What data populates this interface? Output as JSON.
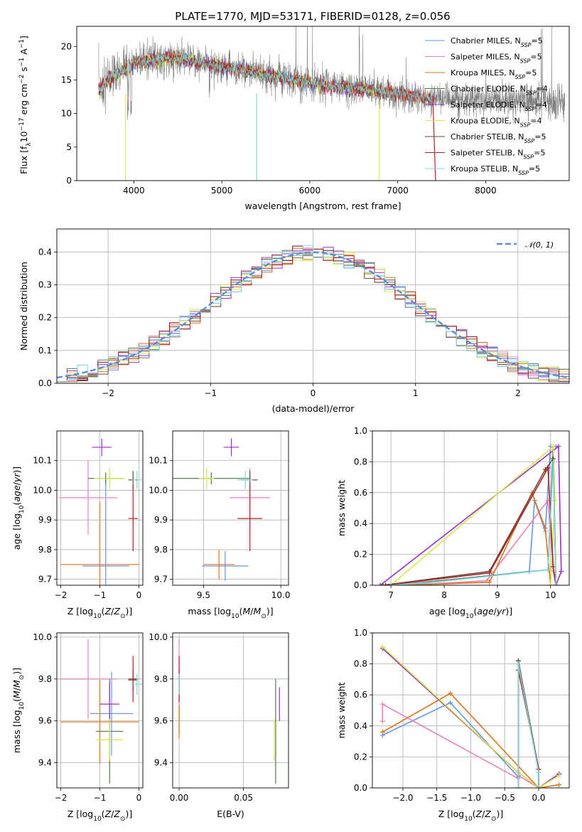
{
  "figure_title": "PLATE=1770, MJD=53171, FIBERID=0128, z=0.056",
  "series": [
    {
      "key": "chab_miles",
      "label": "Chabrier MILES, N",
      "sub": "SSP",
      "suf": "=5",
      "color": "#6495ed"
    },
    {
      "key": "salp_miles",
      "label": "Salpeter MILES, N",
      "sub": "SSP",
      "suf": "=5",
      "color": "#e882b8"
    },
    {
      "key": "krou_miles",
      "label": "Kroupa MILES, N",
      "sub": "SSP",
      "suf": "=5",
      "color": "#e0731a"
    },
    {
      "key": "chab_elod",
      "label": "Chabrier ELODIE, N",
      "sub": "SSP",
      "suf": "=4",
      "color": "#5a7a5a"
    },
    {
      "key": "salp_elod",
      "label": "Salpeter ELODIE, N",
      "sub": "SSP",
      "suf": "=4",
      "color": "#9b30c8"
    },
    {
      "key": "krou_elod",
      "label": "Kroupa ELODIE, N",
      "sub": "SSP",
      "suf": "=4",
      "color": "#d4e84a"
    },
    {
      "key": "chab_stel",
      "label": "Chabrier STELIB, N",
      "sub": "SSP",
      "suf": "=5",
      "color": "#6a4a3a"
    },
    {
      "key": "salp_stel",
      "label": "Salpeter STELIB, N",
      "sub": "SSP",
      "suf": "=5",
      "color": "#b22222"
    },
    {
      "key": "krou_stel",
      "label": "Kroupa STELIB, N",
      "sub": "SSP",
      "suf": "=5",
      "color": "#7fd8d8"
    }
  ],
  "chart_data": [
    {
      "id": "spectrum",
      "type": "line",
      "title": "PLATE=1770, MJD=53171, FIBERID=0128, z=0.056",
      "xlabel": "wavelength [Angstrom, rest frame]",
      "ylabel": "Flux [f_λ 10^-17 erg cm^-2 s^-1 A^-1]",
      "xlim": [
        3350,
        8950
      ],
      "ylim": [
        0,
        23
      ],
      "xticks": [
        4000,
        5000,
        6000,
        7000,
        8000
      ],
      "yticks": [
        0,
        5,
        10,
        15,
        20
      ],
      "data_color": "#808080",
      "continuum": {
        "x": [
          3600,
          3700,
          3800,
          3900,
          4000,
          4200,
          4400,
          4600,
          4800,
          5000,
          5200,
          5400,
          5600,
          5800,
          6000,
          6200,
          6400,
          6600,
          6800,
          7000,
          7200,
          7400
        ],
        "y": [
          13.5,
          15.0,
          15.8,
          16.5,
          17.5,
          18.0,
          18.3,
          18.0,
          17.5,
          17.0,
          16.5,
          16.0,
          15.5,
          15.0,
          14.6,
          14.2,
          13.9,
          13.6,
          13.3,
          13.0,
          12.6,
          12.2
        ]
      },
      "legend_position": "upper right"
    },
    {
      "id": "residuals",
      "type": "step",
      "xlabel": "(data-model)/error",
      "ylabel": "Normed distribution",
      "xlim": [
        -2.5,
        2.5
      ],
      "ylim": [
        0,
        0.47
      ],
      "xticks": [
        -2,
        -1,
        0,
        1,
        2
      ],
      "yticks": [
        0.0,
        0.1,
        0.2,
        0.3,
        0.4
      ],
      "bin_start": -2.5,
      "bin_width": 0.1,
      "gaussian": {
        "name": "N(0,1)",
        "mean": 0,
        "sigma": 1,
        "color": "#5b8fd6"
      },
      "legend_position": "upper right"
    },
    {
      "id": "age_vs_Z",
      "type": "errorbar",
      "xlabel": "Z [log10(Z/Z⊙)]",
      "ylabel": "age  [log10(age/yr)]",
      "xlim": [
        -2.1,
        0.1
      ],
      "ylim": [
        9.68,
        10.2
      ],
      "xticks": [
        -2,
        -1,
        0
      ],
      "yticks": [
        9.7,
        9.8,
        9.9,
        10.0,
        10.1
      ],
      "points": [
        {
          "s": "chab_miles",
          "x": -0.85,
          "xerr": 0.6,
          "y": 9.745,
          "yerr": 0.3
        },
        {
          "s": "salp_miles",
          "x": -1.3,
          "xerr": 0.75,
          "y": 9.975,
          "yerr": 0.125
        },
        {
          "s": "krou_miles",
          "x": -1.0,
          "xerr": 1.0,
          "y": 9.75,
          "yerr": 0.21
        },
        {
          "s": "chab_elod",
          "x": -0.85,
          "xerr": 0.45,
          "y": 10.04,
          "yerr": 0.02
        },
        {
          "s": "salp_elod",
          "x": -0.95,
          "xerr": 0.25,
          "y": 10.145,
          "yerr": 0.03
        },
        {
          "s": "krou_elod",
          "x": -0.75,
          "xerr": 0.4,
          "y": 10.04,
          "yerr": 0.035
        },
        {
          "s": "chab_stel",
          "x": -0.15,
          "xerr": 0.12,
          "y": 10.035,
          "yerr": 0.03
        },
        {
          "s": "salp_stel",
          "x": -0.15,
          "xerr": 0.12,
          "y": 9.905,
          "yerr": 0.11
        },
        {
          "s": "krou_stel",
          "x": -0.05,
          "xerr": 0.12,
          "y": 10.035,
          "yerr": 0.03
        }
      ]
    },
    {
      "id": "age_vs_mass",
      "type": "errorbar",
      "xlabel": "mass [log10(M/M⊙)]",
      "ylabel": "",
      "xlim": [
        9.3,
        10.05
      ],
      "ylim": [
        9.68,
        10.2
      ],
      "xticks": [
        9.5,
        10.0
      ],
      "yticks": [
        9.7,
        9.8,
        9.9,
        10.0,
        10.1
      ],
      "points": [
        {
          "s": "chab_miles",
          "x": 9.64,
          "xerr": 0.15,
          "y": 9.745,
          "yerr": 0.05
        },
        {
          "s": "salp_miles",
          "x": 9.8,
          "xerr": 0.13,
          "y": 9.975,
          "yerr": 0.1
        },
        {
          "s": "krou_miles",
          "x": 9.6,
          "xerr": 0.1,
          "y": 9.75,
          "yerr": 0.05
        },
        {
          "s": "chab_elod",
          "x": 9.55,
          "xerr": 0.25,
          "y": 10.04,
          "yerr": 0.02
        },
        {
          "s": "salp_elod",
          "x": 9.68,
          "xerr": 0.05,
          "y": 10.145,
          "yerr": 0.03
        },
        {
          "s": "krou_elod",
          "x": 9.52,
          "xerr": 0.05,
          "y": 10.04,
          "yerr": 0.035
        },
        {
          "s": "chab_stel",
          "x": 9.8,
          "xerr": 0.05,
          "y": 10.035,
          "yerr": 0.03
        },
        {
          "s": "salp_stel",
          "x": 9.8,
          "xerr": 0.08,
          "y": 9.905,
          "yerr": 0.11
        },
        {
          "s": "krou_stel",
          "x": 9.77,
          "xerr": 0.05,
          "y": 10.035,
          "yerr": 0.03
        }
      ]
    },
    {
      "id": "mw_vs_age",
      "type": "line",
      "xlabel": "age  [log10(age/yr)]",
      "ylabel": "mass weight",
      "xlim": [
        6.65,
        10.35
      ],
      "ylim": [
        0,
        1.0
      ],
      "xticks": [
        7,
        8,
        9,
        10
      ],
      "yticks": [
        0.0,
        0.2,
        0.4,
        0.6,
        0.8,
        1.0
      ],
      "lines": [
        {
          "s": "chab_miles",
          "x": [
            7.3,
            7.8,
            9.6,
            9.7,
            9.9,
            10.0,
            10.1
          ],
          "y": [
            0.0,
            0.02,
            0.09,
            0.55,
            0.35,
            0.9,
            0.9
          ]
        },
        {
          "s": "salp_miles",
          "x": [
            7.3,
            8.8,
            9.95,
            10.05,
            10.1
          ],
          "y": [
            0.0,
            0.03,
            0.55,
            0.09,
            0.0
          ]
        },
        {
          "s": "krou_miles",
          "x": [
            7.3,
            8.85,
            9.65,
            9.9,
            10.0
          ],
          "y": [
            0.0,
            0.02,
            0.6,
            0.37,
            0.0
          ]
        },
        {
          "s": "chab_elod",
          "x": [
            7.05,
            9.95,
            10.05,
            10.1
          ],
          "y": [
            0.0,
            0.1,
            0.9,
            0.0
          ]
        },
        {
          "s": "salp_elod",
          "x": [
            6.8,
            10.15,
            10.2,
            10.1
          ],
          "y": [
            0.0,
            0.9,
            0.09,
            0.0
          ]
        },
        {
          "s": "krou_elod",
          "x": [
            7.0,
            10.05,
            10.08,
            10.0
          ],
          "y": [
            0.0,
            0.9,
            0.55,
            0.0
          ]
        },
        {
          "s": "chab_stel",
          "x": [
            6.85,
            8.85,
            9.9,
            10.05,
            10.1
          ],
          "y": [
            0.0,
            0.09,
            0.75,
            0.82,
            0.0
          ]
        },
        {
          "s": "salp_stel",
          "x": [
            6.9,
            8.85,
            9.95,
            10.05,
            10.1
          ],
          "y": [
            0.0,
            0.08,
            0.76,
            0.12,
            0.0
          ]
        },
        {
          "s": "krou_stel",
          "x": [
            7.0,
            7.8,
            9.95,
            10.05,
            10.1
          ],
          "y": [
            0.0,
            0.02,
            0.1,
            0.8,
            0.0
          ]
        }
      ]
    },
    {
      "id": "mass_vs_Z",
      "type": "errorbar",
      "xlabel": "Z [log10(Z/Z⊙)]",
      "ylabel": "mass [log10(M/M⊙)]",
      "xlim": [
        -2.1,
        0.1
      ],
      "ylim": [
        9.28,
        10.02
      ],
      "xticks": [
        -2,
        -1,
        0
      ],
      "yticks": [
        9.4,
        9.6,
        9.8,
        10.0
      ],
      "points": [
        {
          "s": "chab_miles",
          "x": -0.7,
          "xerr": 0.55,
          "y": 9.635,
          "yerr": 0.2
        },
        {
          "s": "salp_miles",
          "x": -1.3,
          "xerr": 0.75,
          "y": 9.8,
          "yerr": 0.19
        },
        {
          "s": "krou_miles",
          "x": -1.0,
          "xerr": 1.0,
          "y": 9.595,
          "yerr": 0.2
        },
        {
          "s": "chab_elod",
          "x": -0.75,
          "xerr": 0.35,
          "y": 9.55,
          "yerr": 0.25
        },
        {
          "s": "salp_elod",
          "x": -0.75,
          "xerr": 0.25,
          "y": 9.68,
          "yerr": 0.1
        },
        {
          "s": "krou_elod",
          "x": -0.75,
          "xerr": 0.35,
          "y": 9.51,
          "yerr": 0.1
        },
        {
          "s": "chab_stel",
          "x": -0.15,
          "xerr": 0.12,
          "y": 9.795,
          "yerr": 0.05
        },
        {
          "s": "salp_stel",
          "x": -0.15,
          "xerr": 0.12,
          "y": 9.8,
          "yerr": 0.11
        },
        {
          "s": "krou_stel",
          "x": -0.05,
          "xerr": 0.15,
          "y": 9.775,
          "yerr": 0.05
        }
      ]
    },
    {
      "id": "mass_vs_ebv",
      "type": "errorbar",
      "xlabel": "E(B-V)",
      "ylabel": "",
      "xlim": [
        -0.005,
        0.085
      ],
      "ylim": [
        9.28,
        10.02
      ],
      "xticks": [
        0.0,
        0.05
      ],
      "yticks": [
        9.4,
        9.6,
        9.8,
        10.0
      ],
      "points": [
        {
          "s": "chab_miles",
          "x": 0.0,
          "xerr": 0,
          "y": 9.635,
          "yerr": 0.1
        },
        {
          "s": "salp_miles",
          "x": 0.0,
          "xerr": 0,
          "y": 9.8,
          "yerr": 0.19
        },
        {
          "s": "krou_miles",
          "x": 0.0,
          "xerr": 0,
          "y": 9.595,
          "yerr": 0.08
        },
        {
          "s": "chab_elod",
          "x": 0.075,
          "xerr": 0,
          "y": 9.55,
          "yerr": 0.25
        },
        {
          "s": "salp_elod",
          "x": 0.078,
          "xerr": 0,
          "y": 9.68,
          "yerr": 0.08
        },
        {
          "s": "krou_elod",
          "x": 0.074,
          "xerr": 0,
          "y": 9.51,
          "yerr": 0.1
        },
        {
          "s": "chab_stel",
          "x": 0.0,
          "xerr": 0,
          "y": 9.795,
          "yerr": 0.05
        },
        {
          "s": "salp_stel",
          "x": 0.0,
          "xerr": 0,
          "y": 9.8,
          "yerr": 0.11
        },
        {
          "s": "krou_stel",
          "x": 0.0,
          "xerr": 0,
          "y": 9.775,
          "yerr": 0.05
        }
      ]
    },
    {
      "id": "mw_vs_Z",
      "type": "line",
      "xlabel": "Z [log10(Z/Z⊙)]",
      "ylabel": "mass weight",
      "xlim": [
        -2.45,
        0.45
      ],
      "ylim": [
        0,
        1.0
      ],
      "xticks": [
        -2.0,
        -1.5,
        -1.0,
        -0.5,
        0.0
      ],
      "yticks": [
        0.0,
        0.2,
        0.4,
        0.6,
        0.8,
        1.0
      ],
      "lines": [
        {
          "s": "chab_miles",
          "x": [
            -2.3,
            -1.3,
            -0.3,
            -0.3,
            0.0,
            0.0
          ],
          "y": [
            0.34,
            0.55,
            0.07,
            0.82,
            0.1,
            0.0
          ]
        },
        {
          "s": "salp_miles",
          "x": [
            -2.3,
            -2.3,
            -0.3,
            -0.3,
            0.0
          ],
          "y": [
            0.43,
            0.54,
            0.06,
            0.08,
            0.0
          ]
        },
        {
          "s": "krou_miles",
          "x": [
            -2.3,
            -1.3,
            0.0,
            0.3
          ],
          "y": [
            0.36,
            0.61,
            0.0,
            0.02
          ]
        },
        {
          "s": "chab_elod",
          "x": [
            -2.3,
            -0.3,
            0.0,
            0.3
          ],
          "y": [
            0.9,
            0.1,
            0.0,
            0.09
          ]
        },
        {
          "s": "salp_elod",
          "x": [
            -2.3,
            -0.3,
            0.0,
            0.3
          ],
          "y": [
            0.9,
            0.1,
            0.0,
            0.09
          ]
        },
        {
          "s": "krou_elod",
          "x": [
            -2.3,
            -0.3,
            0.0,
            0.3
          ],
          "y": [
            0.91,
            0.1,
            0.0,
            0.08
          ]
        },
        {
          "s": "chab_stel",
          "x": [
            -0.3,
            -0.3,
            0.0,
            0.0
          ],
          "y": [
            0.0,
            0.82,
            0.12,
            0.0
          ]
        },
        {
          "s": "salp_stel",
          "x": [
            -0.3,
            -0.3,
            0.0,
            0.0
          ],
          "y": [
            0.0,
            0.76,
            0.12,
            0.0
          ]
        },
        {
          "s": "krou_stel",
          "x": [
            -0.3,
            -0.3,
            0.0,
            0.0
          ],
          "y": [
            0.0,
            0.8,
            0.1,
            0.0
          ]
        }
      ]
    }
  ]
}
